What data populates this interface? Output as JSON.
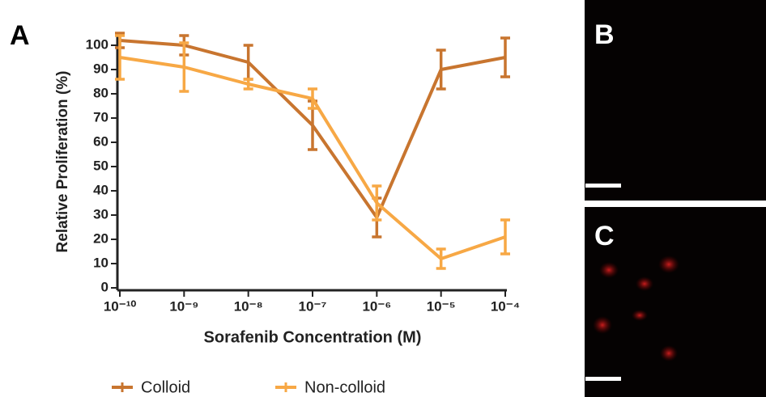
{
  "chart_data": {
    "type": "line",
    "panel_label": "A",
    "xlabel": "Sorafenib Concentration (M)",
    "ylabel": "Relative Proliferation (%)",
    "x": [
      1e-10,
      1e-09,
      1e-08,
      1e-07,
      1e-06,
      1e-05,
      0.0001
    ],
    "xscale": "log",
    "xlim": [
      1e-10,
      0.0001
    ],
    "xticks": [
      {
        "value": 1e-10,
        "label": "10⁻¹⁰"
      },
      {
        "value": 1e-09,
        "label": "10⁻⁹"
      },
      {
        "value": 1e-08,
        "label": "10⁻⁸"
      },
      {
        "value": 1e-07,
        "label": "10⁻⁷"
      },
      {
        "value": 1e-06,
        "label": "10⁻⁶"
      },
      {
        "value": 1e-05,
        "label": "10⁻⁵"
      },
      {
        "value": 0.0001,
        "label": "10⁻⁴"
      }
    ],
    "ylim": [
      0,
      105
    ],
    "yticks": [
      0,
      10,
      20,
      30,
      40,
      50,
      60,
      70,
      80,
      90,
      100
    ],
    "legend": "bottom",
    "series": [
      {
        "name": "Colloid",
        "color": "#c8752f",
        "values": [
          102,
          100,
          93,
          67,
          29,
          90,
          95
        ],
        "errors": [
          3,
          4,
          7,
          10,
          8,
          8,
          8
        ]
      },
      {
        "name": "Non-colloid",
        "color": "#f7a845",
        "values": [
          95,
          91,
          84,
          78,
          35,
          12,
          21
        ],
        "errors": [
          9,
          10,
          2,
          4,
          7,
          4,
          7
        ]
      }
    ]
  },
  "panels": [
    {
      "label": "B"
    },
    {
      "label": "C"
    }
  ]
}
